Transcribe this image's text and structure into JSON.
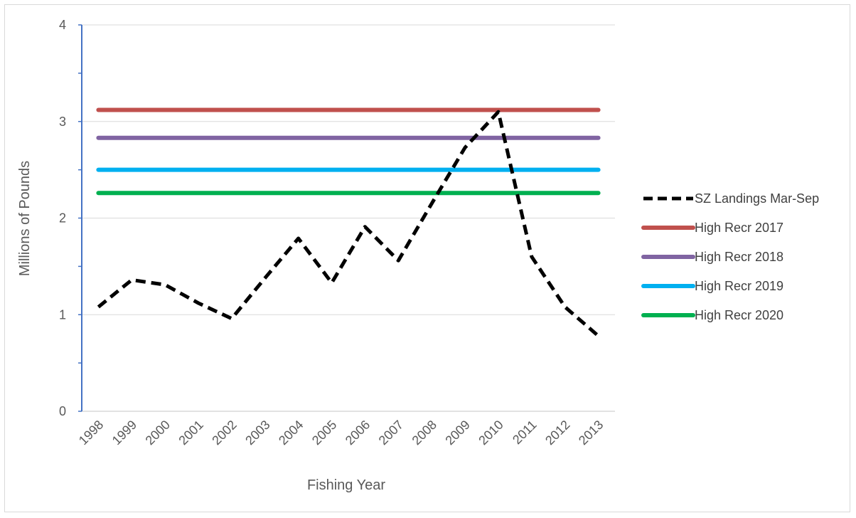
{
  "chart_data": {
    "type": "line",
    "title": "",
    "xlabel": "Fishing Year",
    "ylabel": "Millions of Pounds",
    "categories": [
      "1998",
      "1999",
      "2000",
      "2001",
      "2002",
      "2003",
      "2004",
      "2005",
      "2006",
      "2007",
      "2008",
      "2009",
      "2010",
      "2011",
      "2012",
      "2013"
    ],
    "ylim": [
      0,
      4
    ],
    "y_ticks": [
      "0",
      "1",
      "2",
      "3",
      "4"
    ],
    "grid": true,
    "legend_position": "right",
    "series": [
      {
        "name": "SZ Landings Mar-Sep",
        "color": "#000000",
        "style": "dashed",
        "values": [
          1.08,
          1.36,
          1.31,
          1.12,
          0.96,
          1.38,
          1.79,
          1.33,
          1.91,
          1.56,
          2.15,
          2.73,
          3.1,
          1.6,
          1.08,
          0.78
        ]
      },
      {
        "name": "High Recr 2017",
        "color": "#c0504d",
        "style": "solid",
        "values": [
          3.12,
          3.12,
          3.12,
          3.12,
          3.12,
          3.12,
          3.12,
          3.12,
          3.12,
          3.12,
          3.12,
          3.12,
          3.12,
          3.12,
          3.12,
          3.12
        ]
      },
      {
        "name": "High Recr 2018",
        "color": "#8064a2",
        "style": "solid",
        "values": [
          2.83,
          2.83,
          2.83,
          2.83,
          2.83,
          2.83,
          2.83,
          2.83,
          2.83,
          2.83,
          2.83,
          2.83,
          2.83,
          2.83,
          2.83,
          2.83
        ]
      },
      {
        "name": "High Recr 2019",
        "color": "#00b0f0",
        "style": "solid",
        "values": [
          2.5,
          2.5,
          2.5,
          2.5,
          2.5,
          2.5,
          2.5,
          2.5,
          2.5,
          2.5,
          2.5,
          2.5,
          2.5,
          2.5,
          2.5,
          2.5
        ]
      },
      {
        "name": "High Recr 2020",
        "color": "#00b050",
        "style": "solid",
        "values": [
          2.26,
          2.26,
          2.26,
          2.26,
          2.26,
          2.26,
          2.26,
          2.26,
          2.26,
          2.26,
          2.26,
          2.26,
          2.26,
          2.26,
          2.26,
          2.26
        ]
      }
    ]
  }
}
